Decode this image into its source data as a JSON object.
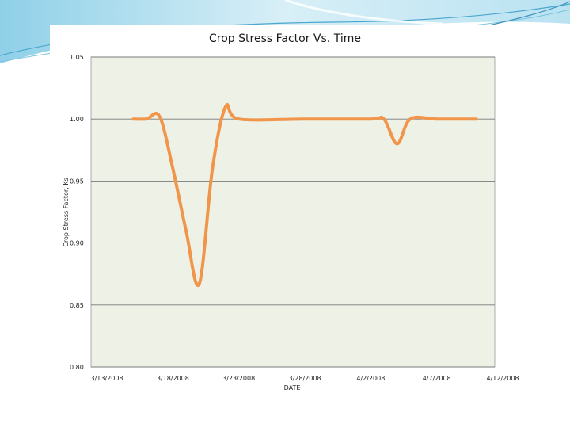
{
  "chart_data": {
    "type": "line",
    "title": "Crop Stress Factor Vs. Time",
    "xlabel": "DATE",
    "ylabel": "Crop Stress Factor, Ks",
    "ylim": [
      0.8,
      1.05
    ],
    "xlim": [
      "3/13/2008",
      "4/12/2008"
    ],
    "x_ticks": [
      "3/13/2008",
      "3/18/2008",
      "3/23/2008",
      "3/28/2008",
      "4/2/2008",
      "4/7/2008",
      "4/12/2008"
    ],
    "y_ticks": [
      "0.80",
      "0.85",
      "0.90",
      "0.95",
      "1.00",
      "1.05"
    ],
    "grid": true,
    "series": [
      {
        "color": "#f0954a",
        "points": [
          {
            "x": "3/15/2008",
            "y": 1.0
          },
          {
            "x": "3/16/2008",
            "y": 1.0
          },
          {
            "x": "3/17/2008",
            "y": 1.002
          },
          {
            "x": "3/18/2008",
            "y": 0.96
          },
          {
            "x": "3/19/2008",
            "y": 0.91
          },
          {
            "x": "3/20/2008",
            "y": 0.867
          },
          {
            "x": "3/21/2008",
            "y": 0.96
          },
          {
            "x": "3/22/2008",
            "y": 1.01
          },
          {
            "x": "3/23/2008",
            "y": 1.0
          },
          {
            "x": "3/28/2008",
            "y": 1.0
          },
          {
            "x": "4/2/2008",
            "y": 1.0
          },
          {
            "x": "4/3/2008",
            "y": 1.0
          },
          {
            "x": "4/4/2008",
            "y": 0.98
          },
          {
            "x": "4/5/2008",
            "y": 1.0
          },
          {
            "x": "4/7/2008",
            "y": 1.0
          },
          {
            "x": "4/10/2008",
            "y": 1.0
          }
        ]
      }
    ]
  }
}
